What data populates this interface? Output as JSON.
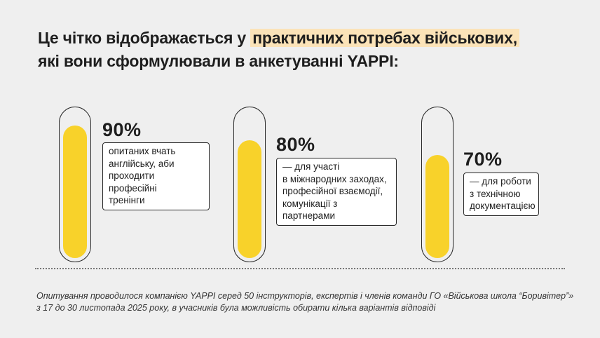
{
  "headline": {
    "part1": "Це чітко відображається у ",
    "highlight": "практичних потребах військових,",
    "line2": "які вони сформулювали в анкетуванні YAPPI:"
  },
  "chart_data": {
    "type": "bar",
    "orientation": "vertical-tube",
    "ylim": [
      0,
      100
    ],
    "fill_color": "#f8d22a",
    "values": [
      90,
      80,
      70
    ],
    "labels": [
      "90%",
      "80%",
      "70%"
    ],
    "captions": [
      "опитаних вчать\nанглійську, аби\nпроходити професійні\nтренінги",
      "— для участі\nв міжнародних заходах,\nпрофесійної взаємодії,\nкомунікації з партнерами",
      "— для роботи\nз технічною\nдокументацією"
    ]
  },
  "footnote": "Опитування проводилося компанією YAPPI серед 50 інструкторів, експертів і членів команди ГО «Військова школа “Боривітер”»\nз 17 до 30 листопада 2025 року, в учасників була можливість обирати кілька варіантів відповіді"
}
